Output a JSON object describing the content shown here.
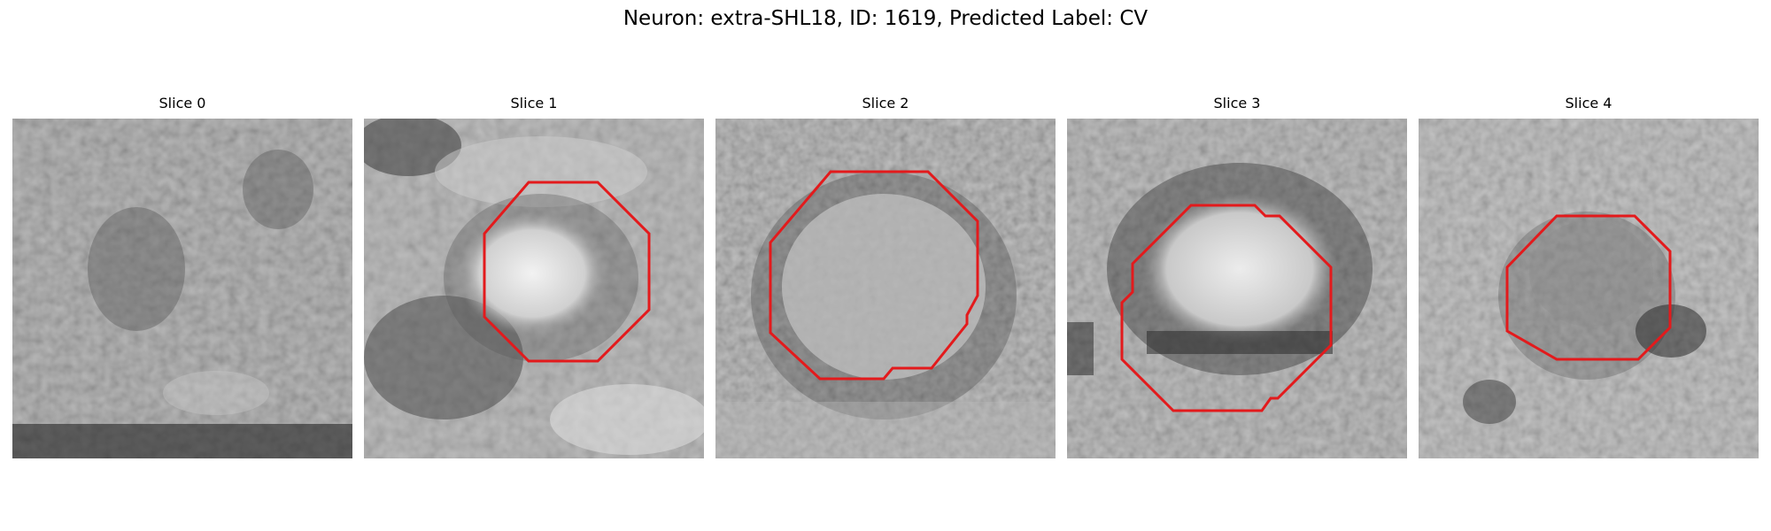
{
  "figure": {
    "title": "Neuron: extra-SHL18, ID: 1619, Predicted Label: CV"
  },
  "panels": [
    {
      "title": "Slice 0",
      "has_contour": false
    },
    {
      "title": "Slice 1",
      "has_contour": true
    },
    {
      "title": "Slice 2",
      "has_contour": true
    },
    {
      "title": "Slice 3",
      "has_contour": true
    },
    {
      "title": "Slice 4",
      "has_contour": true
    }
  ],
  "colors": {
    "contour": "#e31a1c",
    "background": "#ffffff"
  }
}
